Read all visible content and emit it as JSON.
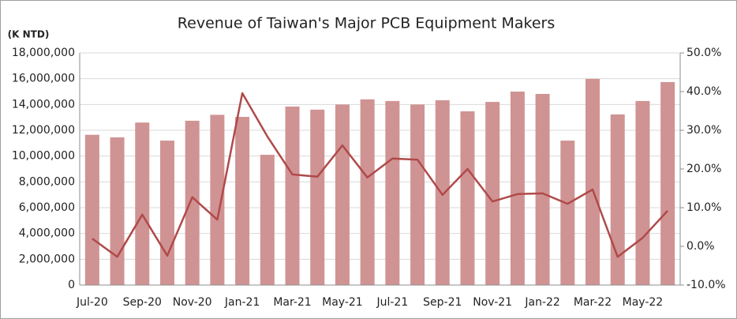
{
  "chart_data": {
    "type": "bar-line",
    "title": "Revenue of Taiwan's Major PCB Equipment Makers",
    "y_label": "(K NTD)",
    "categories": [
      "Jul-20",
      null,
      "Sep-20",
      null,
      "Nov-20",
      null,
      "Jan-21",
      null,
      "Mar-21",
      null,
      "May-21",
      null,
      "Jul-21",
      null,
      "Sep-21",
      null,
      "Nov-21",
      null,
      "Jan-22",
      null,
      "Mar-22",
      null,
      "May-22",
      null
    ],
    "series": [
      {
        "type": "bar",
        "color": "#d09393",
        "values": [
          11650000,
          11450000,
          12600000,
          11200000,
          12740000,
          13200000,
          13040000,
          10100000,
          13840000,
          13600000,
          14000000,
          14400000,
          14270000,
          14000000,
          14330000,
          13470000,
          14200000,
          15000000,
          14820000,
          11200000,
          15980000,
          13230000,
          14270000,
          15740000
        ]
      },
      {
        "type": "line",
        "color": "#b04a4a",
        "axis": "y2",
        "values": [
          2.0,
          -2.7,
          8.2,
          -2.4,
          12.7,
          6.9,
          39.6,
          28.4,
          18.6,
          18.0,
          26.1,
          17.8,
          22.7,
          22.4,
          13.3,
          20.0,
          11.6,
          13.5,
          13.7,
          11.0,
          14.7,
          -2.7,
          2.2,
          9.2
        ]
      }
    ],
    "ylim": [
      0,
      18000000
    ],
    "yticks": [
      0,
      {
        "value": 2000000,
        "label": "2,000,000"
      },
      {
        "value": 4000000,
        "label": "4,000,000"
      },
      {
        "value": 6000000,
        "label": "6,000,000"
      },
      {
        "value": 8000000,
        "label": "8,000,000"
      },
      {
        "value": 10000000,
        "label": "10,000,000"
      },
      {
        "value": 12000000,
        "label": "12,000,000"
      },
      {
        "value": 14000000,
        "label": "14,000,000"
      },
      {
        "value": 16000000,
        "label": "16,000,000"
      },
      {
        "value": 18000000,
        "label": "18,000,000"
      }
    ],
    "y2lim": [
      -10,
      50
    ],
    "y2ticks": [
      {
        "value": -10,
        "label": "-10.0%"
      },
      {
        "value": 0,
        "label": "0.0%"
      },
      {
        "value": 10,
        "label": "10.0%"
      },
      {
        "value": 20,
        "label": "20.0%"
      },
      {
        "value": 30,
        "label": "30.0%"
      },
      {
        "value": 40,
        "label": "40.0%"
      },
      {
        "value": 50,
        "label": "50.0%"
      }
    ],
    "grid": true
  }
}
